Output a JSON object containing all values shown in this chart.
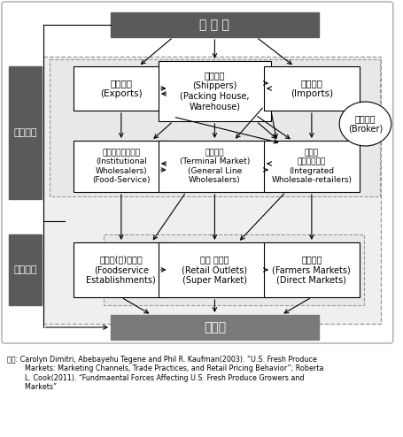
{
  "producer_label": "생 산 자",
  "consumer_label": "소비자",
  "wholesale_label": "도매단계",
  "retail_label": "소매단계",
  "exporter_label": "수출업자\n(Exports)",
  "shipper_label": "출하주체\n(Shippers)\n(Packing House,\nWarehouse)",
  "importer_label": "수입업자\n(Imports)",
  "inst_label": "단체급식도매업체\n(Institutional\nWholesalers)\n(Food-Service)",
  "terminal_label": "도매시장\n(Terminal Market)\n(General Line\nWholesalers)",
  "integrated_label": "도소매\n종합유통업체\n(Integrated\nWholesale-retailers)",
  "broker_label": "중개업자\n(Broker)",
  "foodservice_label": "단체급(외)식업소\n(Foodservice\nEstablishments)",
  "retail_outlets_label": "전문 소매점\n(Retail Outlets)\n(Super Market)",
  "farmers_label": "농민시장\n(Farmers Markets)\n(Direct Markets)",
  "caption": "자료: Carolyn Dimitri, Abebayehu Tegene and Phil R. Kaufman(2003). “U.S. Fresh Produce\n        Markets: Marketing Channels, Trade Practices, and Retail Pricing Behavior”; Roberta\n        L. Cook(2011). “Fundmaental Forces Affecting U.S. Fresh Produce Growers and\n        Markets”",
  "dark_gray": "#5a5a5a",
  "med_gray": "#7a7a7a",
  "light_bg": "#e8e8e8",
  "lighter_bg": "#efefef"
}
